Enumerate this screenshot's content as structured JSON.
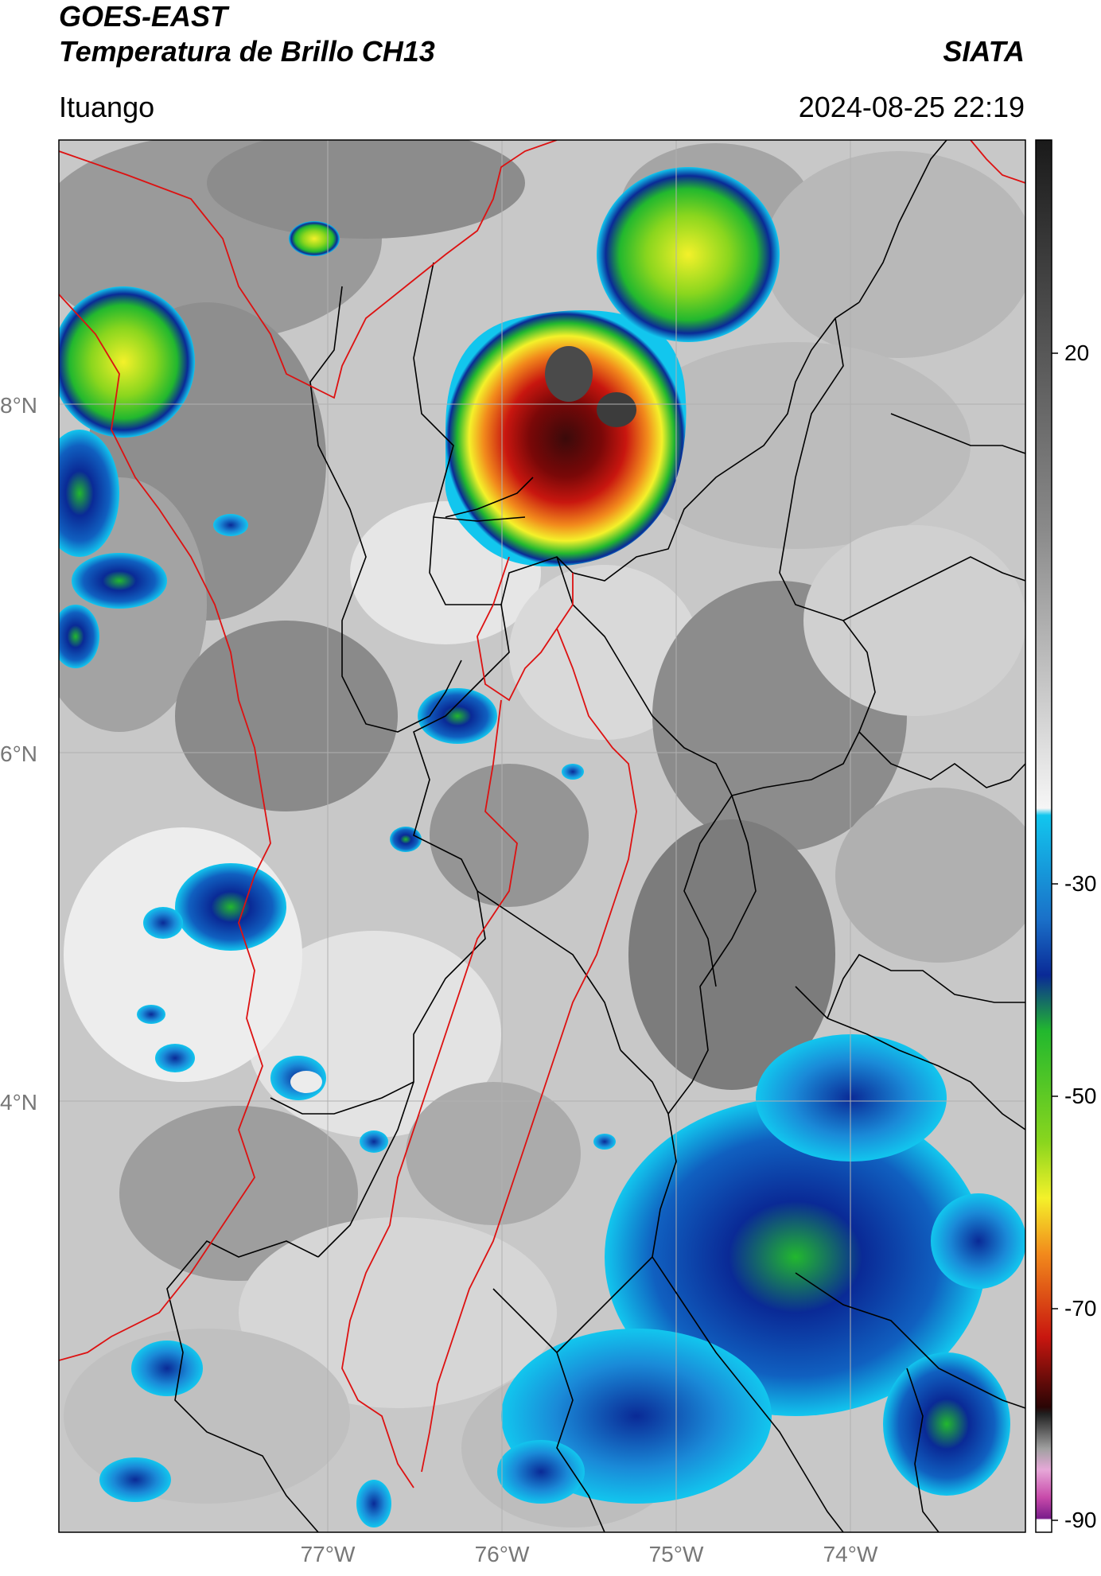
{
  "header": {
    "satellite": "GOES-EAST",
    "product": "Temperatura de Brillo CH13",
    "brand": "SIATA",
    "location": "Ituango",
    "timestamp": "2024-08-25 22:19"
  },
  "map": {
    "lat_labels": [
      "8°N",
      "6°N",
      "4°N"
    ],
    "lon_labels": [
      "77°W",
      "76°W",
      "75°W",
      "74°W"
    ],
    "lat_values": [
      8,
      6,
      4
    ],
    "lon_values": [
      -77,
      -76,
      -75,
      -74
    ],
    "extent": {
      "lon_min": -78.55,
      "lon_max": -73.0,
      "lat_min": 1.55,
      "lat_max": 9.53
    }
  },
  "colorbar": {
    "tick_labels": [
      "20",
      "-30",
      "-50",
      "-70",
      "-90"
    ],
    "tick_values": [
      20,
      -30,
      -50,
      -70,
      -90
    ],
    "range": [
      -92,
      36
    ],
    "colors": {
      "gray_scale": "#777777",
      "cyan": "#12c6ee",
      "blue": "#0a2a96",
      "green": "#22b82e",
      "yellow": "#f4f12a",
      "orange": "#f28a1c",
      "red": "#c8160f",
      "dark": "#1a0405",
      "magenta": "#e050b0",
      "purple": "#7a1d8a"
    }
  },
  "colors": {
    "state_borders": "#000000",
    "international_borders": "#dd1111",
    "gridlines": "#b0b0b0"
  }
}
